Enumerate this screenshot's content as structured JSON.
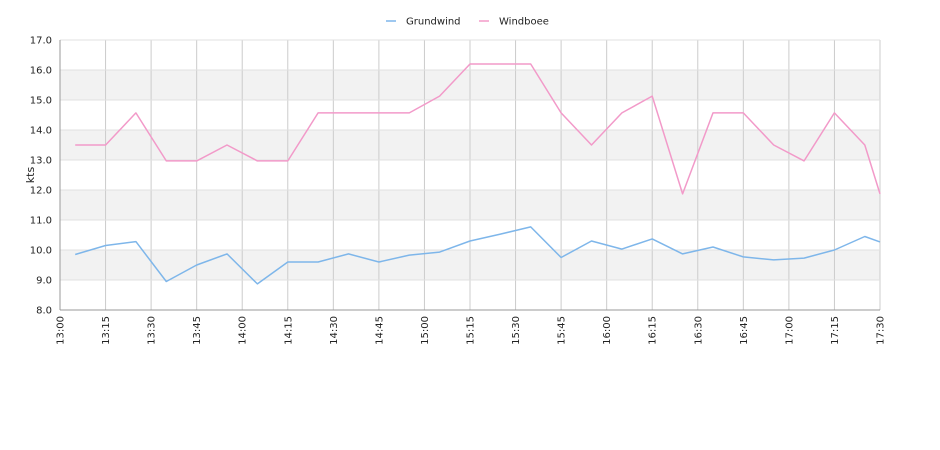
{
  "chart_data": {
    "type": "line",
    "ylabel": "kts",
    "xlabel": "",
    "ylim": [
      8.0,
      17.0
    ],
    "y_ticks": [
      "8.0",
      "9.0",
      "10.0",
      "11.0",
      "12.0",
      "13.0",
      "14.0",
      "15.0",
      "16.0",
      "17.0"
    ],
    "x_ticks": [
      "13:00",
      "13:15",
      "13:30",
      "13:45",
      "14:00",
      "14:15",
      "14:30",
      "14:45",
      "15:00",
      "15:15",
      "15:30",
      "15:45",
      "16:00",
      "16:15",
      "16:30",
      "16:45",
      "17:00",
      "17:15",
      "17:30"
    ],
    "xlim": [
      "13:00",
      "17:30"
    ],
    "grid": true,
    "legend": "top-center",
    "x": [
      "13:05",
      "13:15",
      "13:25",
      "13:35",
      "13:45",
      "13:55",
      "14:05",
      "14:15",
      "14:25",
      "14:35",
      "14:45",
      "14:55",
      "15:05",
      "15:15",
      "15:25",
      "15:35",
      "15:45",
      "15:55",
      "16:05",
      "16:15",
      "16:25",
      "16:35",
      "16:45",
      "16:55",
      "17:05",
      "17:15",
      "17:25",
      "17:30"
    ],
    "series": [
      {
        "name": "Grundwind",
        "color": "#7eb6ea",
        "values": [
          9.85,
          10.15,
          10.28,
          8.95,
          9.5,
          9.87,
          8.87,
          9.6,
          9.6,
          9.87,
          9.6,
          9.83,
          9.93,
          10.3,
          10.53,
          10.77,
          9.75,
          10.3,
          10.03,
          10.37,
          9.87,
          10.1,
          9.77,
          9.67,
          9.73,
          10.0,
          10.45,
          10.27
        ]
      },
      {
        "name": "Windboee",
        "color": "#f29ac9",
        "values": [
          13.5,
          13.5,
          14.57,
          12.97,
          12.97,
          13.5,
          12.97,
          12.97,
          14.57,
          14.57,
          14.57,
          14.57,
          15.13,
          16.2,
          16.2,
          16.2,
          14.57,
          13.5,
          14.57,
          15.13,
          11.87,
          14.57,
          14.57,
          13.5,
          12.97,
          14.57,
          13.5,
          11.87
        ]
      }
    ]
  }
}
